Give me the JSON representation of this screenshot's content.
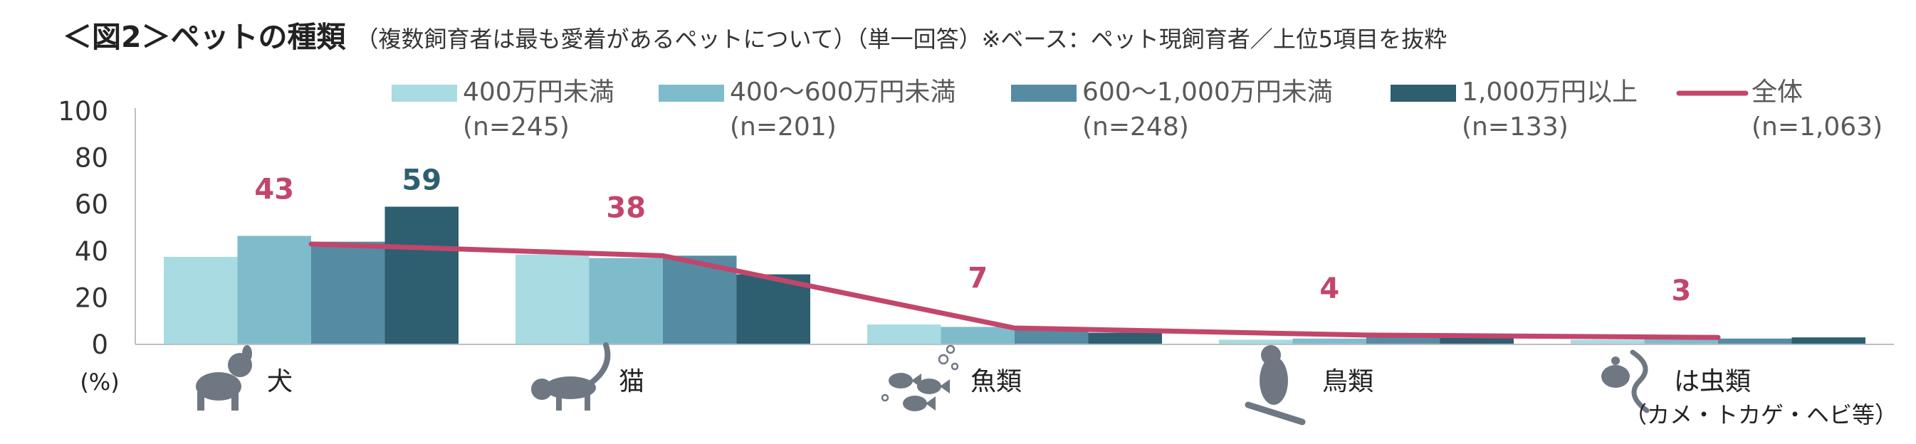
{
  "title": {
    "main": "＜図2＞ペットの種類",
    "sub": "（複数飼育者は最も愛着があるペットについて）（単一回答）※ベース：ペット現飼育者／上位5項目を抜粋"
  },
  "colors": {
    "series": [
      "#a8dbe2",
      "#7fbccb",
      "#558ca4",
      "#2d5f70"
    ],
    "total_line": "#c2466b",
    "max_bar_label": "#2d5f70",
    "axis": "#bfbfbf"
  },
  "chart_data": {
    "type": "bar",
    "unit_label": "(%)",
    "ylim": [
      0,
      100
    ],
    "yticks": [
      0,
      20,
      40,
      60,
      80,
      100
    ],
    "categories": [
      "犬",
      "猫",
      "魚類",
      "鳥類",
      "は虫類"
    ],
    "category_notes": [
      "",
      "",
      "",
      "",
      "（カメ・トカゲ・ヘビ等）"
    ],
    "category_icons": [
      "dog-icon",
      "cat-icon",
      "fish-icon",
      "bird-icon",
      "reptile-icon"
    ],
    "series": [
      {
        "name": "400万円未満",
        "n": "(n=245)",
        "values": [
          37.5,
          38.5,
          8.5,
          2.0,
          2.0
        ]
      },
      {
        "name": "400〜600万円未満",
        "n": "(n=201)",
        "values": [
          46.5,
          37.0,
          7.5,
          2.5,
          2.5
        ]
      },
      {
        "name": "600〜1,000万円未満",
        "n": "(n=248)",
        "values": [
          44.0,
          38.0,
          6.5,
          3.5,
          2.5
        ]
      },
      {
        "name": "1,000万円以上",
        "n": "(n=133)",
        "values": [
          59.0,
          30.0,
          5.0,
          3.0,
          3.0
        ]
      }
    ],
    "total": {
      "name": "全体",
      "n": "(n=1,063)",
      "values": [
        43,
        38,
        7,
        4,
        3
      ]
    },
    "total_labels": [
      "43",
      "38",
      "7",
      "4",
      "3"
    ],
    "highlight_label": {
      "series_index": 3,
      "category_index": 0,
      "text": "59"
    }
  }
}
